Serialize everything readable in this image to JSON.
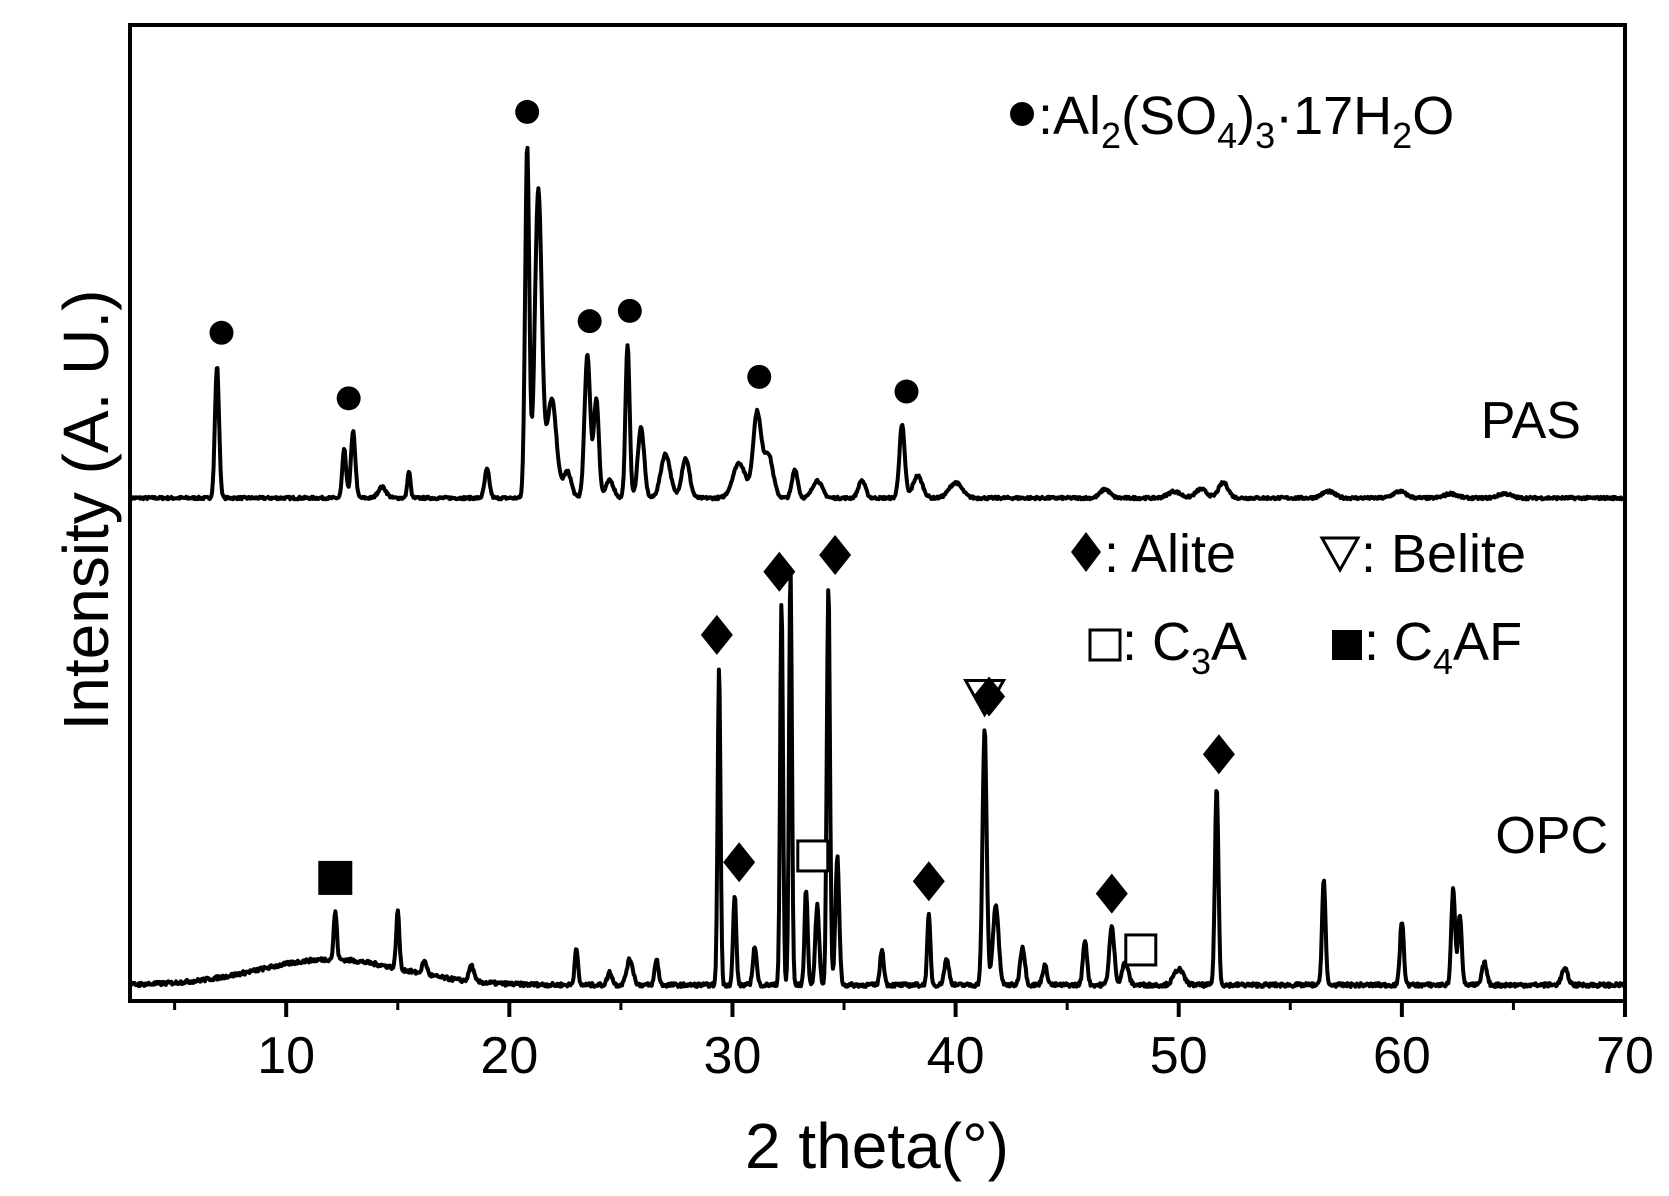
{
  "chart_data": {
    "type": "line",
    "xlabel": "2 theta(°)",
    "ylabel": "Intensity (A. U.)",
    "xlim": [
      3,
      70
    ],
    "x_ticks": [
      10,
      20,
      30,
      40,
      50,
      60,
      70
    ],
    "x_tick_labels": [
      "10",
      "20",
      "30",
      "40",
      "50",
      "60",
      "70"
    ],
    "x_minor_ticks": [
      5,
      15,
      25,
      35,
      45,
      55,
      65
    ],
    "y_ticks_shown": false,
    "grid": false,
    "colors": {
      "line": "#000000",
      "axes": "#000000",
      "background": "#ffffff"
    },
    "series": [
      {
        "name": "PAS",
        "baseline": 0,
        "noise_level": 0.012,
        "peaks": [
          {
            "x": 6.9,
            "y": 0.6,
            "w": 0.13
          },
          {
            "x": 12.6,
            "y": 0.22,
            "w": 0.12
          },
          {
            "x": 13.0,
            "y": 0.3,
            "w": 0.14
          },
          {
            "x": 14.3,
            "y": 0.05,
            "w": 0.25
          },
          {
            "x": 15.5,
            "y": 0.12,
            "w": 0.1
          },
          {
            "x": 19.0,
            "y": 0.13,
            "w": 0.15
          },
          {
            "x": 20.8,
            "y": 1.6,
            "w": 0.13
          },
          {
            "x": 21.3,
            "y": 1.4,
            "w": 0.22
          },
          {
            "x": 21.9,
            "y": 0.45,
            "w": 0.3
          },
          {
            "x": 22.6,
            "y": 0.12,
            "w": 0.25
          },
          {
            "x": 23.5,
            "y": 0.65,
            "w": 0.18
          },
          {
            "x": 23.9,
            "y": 0.45,
            "w": 0.16
          },
          {
            "x": 24.5,
            "y": 0.08,
            "w": 0.25
          },
          {
            "x": 25.3,
            "y": 0.7,
            "w": 0.13
          },
          {
            "x": 25.9,
            "y": 0.32,
            "w": 0.2
          },
          {
            "x": 27.0,
            "y": 0.2,
            "w": 0.3
          },
          {
            "x": 27.9,
            "y": 0.18,
            "w": 0.25
          },
          {
            "x": 30.3,
            "y": 0.16,
            "w": 0.4
          },
          {
            "x": 31.1,
            "y": 0.38,
            "w": 0.25
          },
          {
            "x": 31.6,
            "y": 0.2,
            "w": 0.3
          },
          {
            "x": 32.8,
            "y": 0.13,
            "w": 0.18
          },
          {
            "x": 33.8,
            "y": 0.08,
            "w": 0.3
          },
          {
            "x": 35.8,
            "y": 0.08,
            "w": 0.22
          },
          {
            "x": 37.6,
            "y": 0.33,
            "w": 0.17
          },
          {
            "x": 38.3,
            "y": 0.1,
            "w": 0.3
          },
          {
            "x": 40.0,
            "y": 0.07,
            "w": 0.4
          },
          {
            "x": 46.7,
            "y": 0.04,
            "w": 0.3
          },
          {
            "x": 49.8,
            "y": 0.03,
            "w": 0.4
          },
          {
            "x": 51.0,
            "y": 0.04,
            "w": 0.35
          },
          {
            "x": 52.0,
            "y": 0.07,
            "w": 0.3
          },
          {
            "x": 56.7,
            "y": 0.03,
            "w": 0.4
          },
          {
            "x": 59.9,
            "y": 0.03,
            "w": 0.4
          },
          {
            "x": 62.2,
            "y": 0.02,
            "w": 0.4
          },
          {
            "x": 64.6,
            "y": 0.02,
            "w": 0.4
          }
        ]
      },
      {
        "name": "OPC",
        "baseline": 0,
        "hump": {
          "x": 12,
          "y": 0.08,
          "w": 4.5
        },
        "noise_level": 0.012,
        "peaks": [
          {
            "x": 12.2,
            "y": 0.15,
            "w": 0.1
          },
          {
            "x": 15.0,
            "y": 0.18,
            "w": 0.1
          },
          {
            "x": 16.2,
            "y": 0.04,
            "w": 0.15
          },
          {
            "x": 18.3,
            "y": 0.05,
            "w": 0.15
          },
          {
            "x": 23.0,
            "y": 0.12,
            "w": 0.1
          },
          {
            "x": 24.5,
            "y": 0.04,
            "w": 0.15
          },
          {
            "x": 25.4,
            "y": 0.08,
            "w": 0.2
          },
          {
            "x": 26.6,
            "y": 0.08,
            "w": 0.12
          },
          {
            "x": 29.4,
            "y": 1.0,
            "w": 0.09
          },
          {
            "x": 30.1,
            "y": 0.28,
            "w": 0.1
          },
          {
            "x": 31.0,
            "y": 0.12,
            "w": 0.12
          },
          {
            "x": 32.2,
            "y": 1.2,
            "w": 0.09
          },
          {
            "x": 32.6,
            "y": 1.3,
            "w": 0.09
          },
          {
            "x": 33.3,
            "y": 0.3,
            "w": 0.1
          },
          {
            "x": 33.8,
            "y": 0.25,
            "w": 0.12
          },
          {
            "x": 34.3,
            "y": 1.25,
            "w": 0.1
          },
          {
            "x": 34.7,
            "y": 0.4,
            "w": 0.12
          },
          {
            "x": 36.7,
            "y": 0.11,
            "w": 0.12
          },
          {
            "x": 38.8,
            "y": 0.22,
            "w": 0.1
          },
          {
            "x": 39.6,
            "y": 0.08,
            "w": 0.15
          },
          {
            "x": 41.3,
            "y": 0.8,
            "w": 0.13
          },
          {
            "x": 41.8,
            "y": 0.25,
            "w": 0.18
          },
          {
            "x": 43.0,
            "y": 0.12,
            "w": 0.15
          },
          {
            "x": 44.0,
            "y": 0.06,
            "w": 0.15
          },
          {
            "x": 45.8,
            "y": 0.14,
            "w": 0.13
          },
          {
            "x": 47.0,
            "y": 0.18,
            "w": 0.16
          },
          {
            "x": 47.6,
            "y": 0.07,
            "w": 0.2
          },
          {
            "x": 50.0,
            "y": 0.05,
            "w": 0.3
          },
          {
            "x": 51.7,
            "y": 0.62,
            "w": 0.11
          },
          {
            "x": 56.5,
            "y": 0.33,
            "w": 0.11
          },
          {
            "x": 60.0,
            "y": 0.2,
            "w": 0.12
          },
          {
            "x": 62.3,
            "y": 0.3,
            "w": 0.12
          },
          {
            "x": 62.6,
            "y": 0.22,
            "w": 0.12
          },
          {
            "x": 63.7,
            "y": 0.07,
            "w": 0.15
          },
          {
            "x": 67.3,
            "y": 0.05,
            "w": 0.2
          }
        ]
      }
    ],
    "series_labels": [
      "PAS",
      "OPC"
    ],
    "markers": {
      "PAS": [
        {
          "symbol": "circle",
          "x": 7.1
        },
        {
          "symbol": "circle",
          "x": 12.8
        },
        {
          "symbol": "circle",
          "x": 20.8
        },
        {
          "symbol": "circle",
          "x": 23.6
        },
        {
          "symbol": "circle",
          "x": 25.4
        },
        {
          "symbol": "circle",
          "x": 31.2
        },
        {
          "symbol": "circle",
          "x": 37.8
        }
      ],
      "OPC": [
        {
          "symbol": "filled-square",
          "x": 12.2
        },
        {
          "symbol": "diamond",
          "x": 29.3
        },
        {
          "symbol": "diamond",
          "x": 30.3
        },
        {
          "symbol": "diamond",
          "x": 32.1
        },
        {
          "symbol": "open-square",
          "x": 33.6
        },
        {
          "symbol": "diamond",
          "x": 34.6
        },
        {
          "symbol": "diamond",
          "x": 38.8
        },
        {
          "symbol": "open-triangle-down",
          "x": 41.3
        },
        {
          "symbol": "diamond",
          "x": 41.5
        },
        {
          "symbol": "diamond",
          "x": 47.0
        },
        {
          "symbol": "open-square",
          "x": 48.3
        },
        {
          "symbol": "diamond",
          "x": 51.8
        }
      ]
    },
    "legend": {
      "pas_phase": {
        "prefix": ":Al",
        "sub1": "2",
        "mid1": "(SO",
        "sub2": "4",
        "mid2": ")",
        "sub3": "3",
        "mid3": "·17H",
        "sub4": "2",
        "suffix": "O"
      },
      "alite": ": Alite",
      "belite": ": Belite",
      "c3a": {
        "prefix": ": C",
        "sub": "3",
        "suffix": "A"
      },
      "c4af": {
        "prefix": ": C",
        "sub": "4",
        "suffix": "AF"
      }
    }
  }
}
